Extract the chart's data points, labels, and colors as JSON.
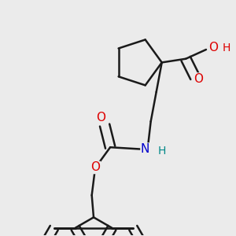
{
  "background_color": "#ebebeb",
  "bond_color": "#1a1a1a",
  "bond_width": 1.8,
  "atom_colors": {
    "O": "#dd0000",
    "N": "#0000cc",
    "H_N": "#008888",
    "H_O": "#dd0000"
  },
  "font_size_main": 11,
  "font_size_h": 10,
  "fig_size": [
    3.0,
    3.0
  ],
  "dpi": 100
}
